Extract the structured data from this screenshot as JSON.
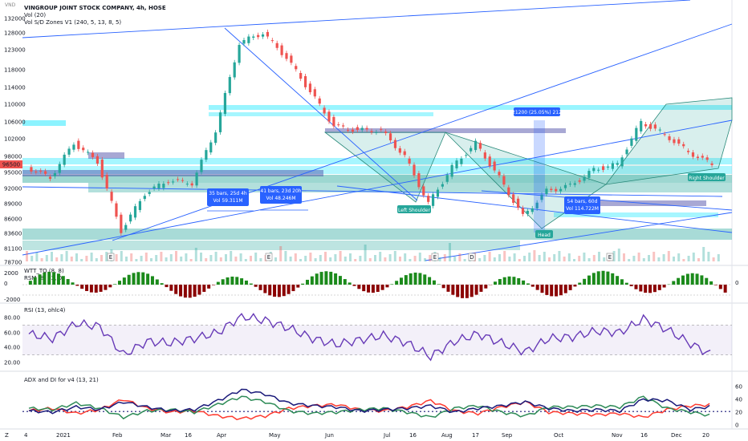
{
  "header": {
    "currency": "VND",
    "symbol_line": "VINGROUP JOINT STOCK COMPANY, 4h, HOSE",
    "vol_line": "Vol (20)",
    "zones_line": "Vol S/D Zones V1 (240, 5, 13, 8, 5)"
  },
  "colors": {
    "up": "#26a69a",
    "down": "#ef5350",
    "zone_cyan": "#00e5ff",
    "zone_teal": "#26a69a",
    "zone_navy": "#3f3f9f",
    "trend_line": "#2962ff",
    "rsi": "#673ab7",
    "wtt_pos": "#1b8a1b",
    "wtt_neg": "#8b0000",
    "adx": "#1a1a7a",
    "di_plus": "#2e8b57",
    "di_minus": "#ff3b30"
  },
  "panes": {
    "wtt": {
      "label": "WTT_TO (8, 8)",
      "label2": "RSM (8, 13, 0",
      "ticks": [
        "2000",
        "0",
        "-2000"
      ],
      "right": "0"
    },
    "rsi": {
      "label": "RSI (13, ohlc4)",
      "ticks": [
        "80.00",
        "60.00",
        "40.00",
        "20.00"
      ]
    },
    "adx": {
      "label": "ADX and DI for v4 (13, 21)",
      "ticks": [
        "60",
        "40",
        "20",
        "0"
      ]
    }
  },
  "price_label": "96500",
  "annotations": {
    "box1": {
      "l1": "35 bars, 25d 4h",
      "l2": "Vol 59.311M"
    },
    "box2": {
      "l1": "41 bars, 23d 20h",
      "l2": "Vol 48.246M"
    },
    "box3": {
      "l1": "21200 (25.05%) 212"
    },
    "box4": {
      "l1": "54 bars, 60d",
      "l2": "Vol 114.722M"
    },
    "left_shoulder": "Left Shoulder",
    "head": "Head",
    "right_shoulder": "Right Shoulder"
  },
  "event_markers": [
    "E",
    "E",
    "E",
    "D",
    "E"
  ],
  "chart_data": {
    "type": "line",
    "title": "VINGROUP JOINT STOCK COMPANY, 4h, HOSE",
    "ylabel": "VND",
    "y_ticks": [
      132000,
      128000,
      123000,
      118000,
      114000,
      110000,
      106000,
      102000,
      98000,
      95000,
      92000,
      89000,
      86000,
      83600,
      81100,
      78700
    ],
    "x_labels": [
      "4",
      "2021",
      "Feb",
      "Mar",
      "16",
      "Apr",
      "May",
      "Jun",
      "Jul",
      "16",
      "Aug",
      "17",
      "Sep",
      "Oct",
      "Nov",
      "16",
      "Dec",
      "20"
    ],
    "ylim": [
      78700,
      132000
    ],
    "series": [
      {
        "name": "Close",
        "x": [
          "2020-12-04",
          "2020-12-20",
          "2021-01-01",
          "2021-01-15",
          "2021-02-01",
          "2021-02-10",
          "2021-03-01",
          "2021-03-16",
          "2021-04-01",
          "2021-04-10",
          "2021-04-20",
          "2021-05-01",
          "2021-05-15",
          "2021-06-01",
          "2021-06-15",
          "2021-07-01",
          "2021-07-10",
          "2021-07-16",
          "2021-08-01",
          "2021-08-17",
          "2021-09-01",
          "2021-09-15",
          "2021-10-01",
          "2021-10-15",
          "2021-11-01",
          "2021-11-16",
          "2021-12-01",
          "2021-12-10",
          "2021-12-20",
          "2021-12-28"
        ],
        "values": [
          96000,
          94000,
          101000,
          97000,
          84000,
          91000,
          93500,
          93000,
          104000,
          125000,
          128000,
          121000,
          113000,
          105000,
          104000,
          104000,
          98000,
          89000,
          96000,
          101000,
          94000,
          86500,
          91500,
          92500,
          95500,
          96500,
          106000,
          103000,
          99000,
          96500
        ]
      }
    ],
    "rsi": {
      "name": "RSI",
      "values": [
        58,
        52,
        72,
        68,
        30,
        48,
        46,
        52,
        60,
        82,
        76,
        66,
        52,
        44,
        50,
        56,
        46,
        28,
        48,
        58,
        46,
        34,
        52,
        54,
        62,
        60,
        78,
        64,
        45,
        28
      ]
    },
    "adx": {
      "names": [
        "ADX",
        "+DI",
        "-DI"
      ],
      "adx": [
        22,
        20,
        28,
        24,
        36,
        28,
        22,
        24,
        38,
        55,
        48,
        34,
        30,
        28,
        22,
        24,
        26,
        30,
        20,
        26,
        30,
        36,
        26,
        22,
        24,
        22,
        40,
        38,
        24,
        30
      ],
      "di_plus": [
        26,
        24,
        34,
        26,
        12,
        22,
        24,
        20,
        32,
        44,
        36,
        22,
        18,
        20,
        24,
        26,
        20,
        12,
        26,
        30,
        20,
        14,
        28,
        28,
        30,
        28,
        44,
        26,
        20,
        14
      ],
      "di_minus": [
        22,
        26,
        18,
        24,
        40,
        26,
        20,
        22,
        14,
        10,
        14,
        26,
        30,
        32,
        24,
        22,
        28,
        38,
        22,
        18,
        28,
        36,
        20,
        18,
        16,
        18,
        12,
        24,
        30,
        32
      ]
    }
  }
}
